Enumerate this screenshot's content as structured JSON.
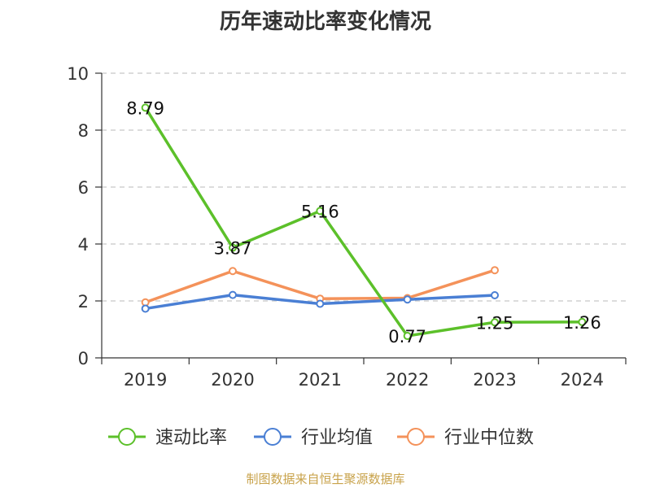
{
  "chart_data": {
    "type": "line",
    "title": "历年速动比率变化情况",
    "source": "制图数据来自恒生聚源数据库",
    "categories": [
      "2019",
      "2020",
      "2021",
      "2022",
      "2023",
      "2024"
    ],
    "ylim": [
      0,
      10
    ],
    "yticks": [
      0,
      2,
      4,
      6,
      8,
      10
    ],
    "grid": true,
    "legend_position": "bottom",
    "series": [
      {
        "name": "速动比率",
        "color": "#5cc02a",
        "values": [
          8.79,
          3.87,
          5.16,
          0.77,
          1.25,
          1.26
        ],
        "labels": [
          "8.79",
          "3.87",
          "5.16",
          "0.77",
          "1.25",
          "1.26"
        ]
      },
      {
        "name": "行业均值",
        "color": "#4a7fd4",
        "values": [
          1.73,
          2.21,
          1.9,
          2.05,
          2.2,
          null
        ]
      },
      {
        "name": "行业中位数",
        "color": "#f4925a",
        "values": [
          1.95,
          3.05,
          2.08,
          2.1,
          3.08,
          null
        ]
      }
    ]
  }
}
